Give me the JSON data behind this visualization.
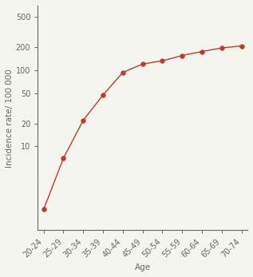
{
  "x_labels": [
    "20-24",
    "25-29",
    "30-34",
    "35-39",
    "40-44",
    "45-49",
    "50-54",
    "55-59",
    "60-64",
    "65-69",
    "70-74"
  ],
  "x_values": [
    0,
    1,
    2,
    3,
    4,
    5,
    6,
    7,
    8,
    9,
    10
  ],
  "y_values": [
    1.5,
    7.0,
    22.0,
    47.0,
    93.0,
    120.0,
    132.0,
    155.0,
    175.0,
    195.0,
    207.0
  ],
  "line_color": "#c0392b",
  "marker_color": "#c0392b",
  "marker_size": 4,
  "line_width": 1.0,
  "xlabel": "Age",
  "ylabel": "Incidence rate/ 100 000",
  "yticks": [
    10,
    20,
    50,
    100,
    200,
    500
  ],
  "ytick_labels": [
    "10",
    "20",
    "50",
    "100",
    "200",
    "500"
  ],
  "ylim": [
    0.8,
    700
  ],
  "background_color": "#f5f5f0",
  "axis_color": "#666666",
  "label_fontsize": 7.5,
  "tick_fontsize": 7
}
